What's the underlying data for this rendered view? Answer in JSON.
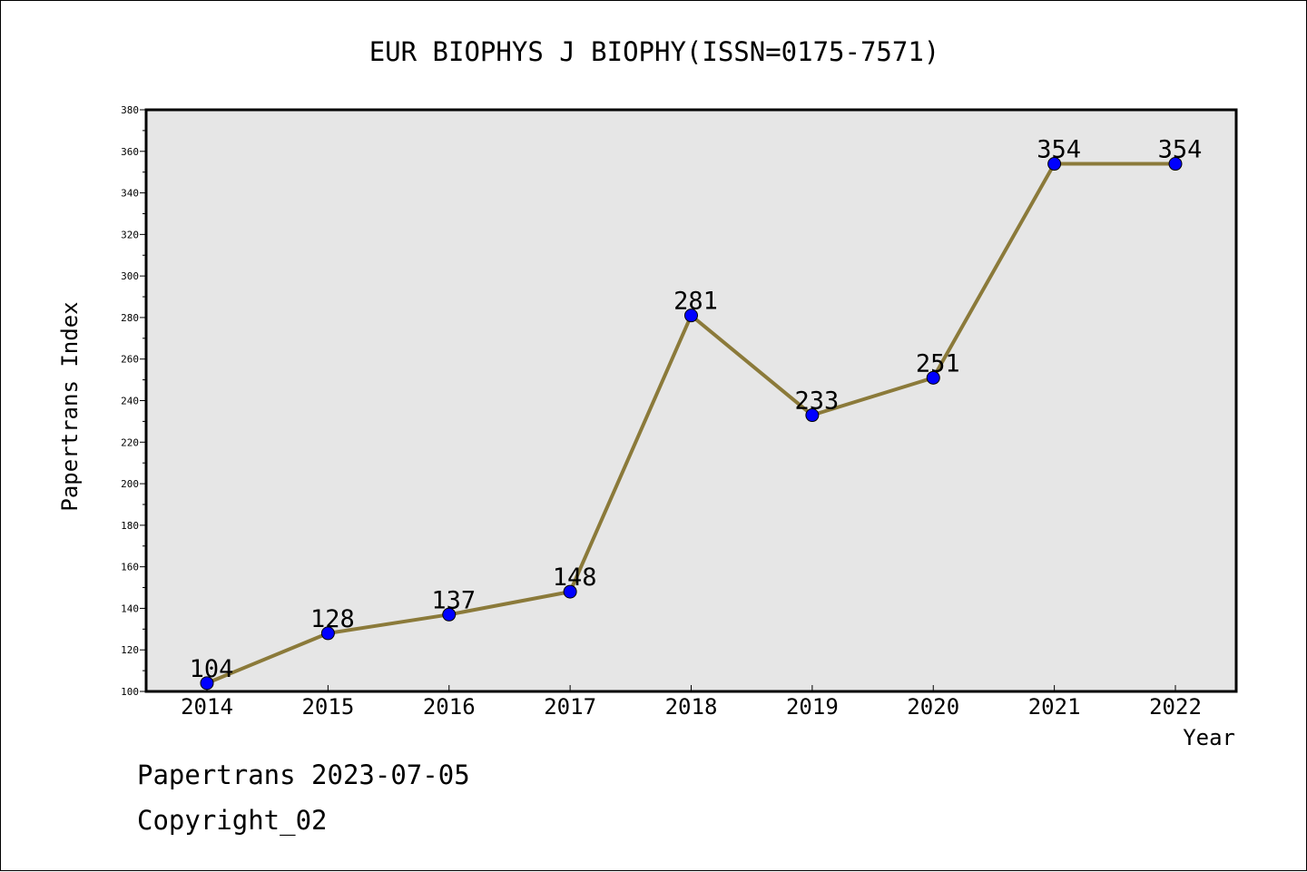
{
  "chart_data": {
    "type": "line",
    "title": "EUR BIOPHYS J BIOPHY(ISSN=0175-7571)",
    "xlabel": "Year",
    "ylabel": "Papertrans Index",
    "categories": [
      "2014",
      "2015",
      "2016",
      "2017",
      "2018",
      "2019",
      "2020",
      "2021",
      "2022"
    ],
    "values": [
      104,
      128,
      137,
      148,
      281,
      233,
      251,
      354,
      354
    ],
    "ylim": [
      100,
      380
    ],
    "y_ticks": [
      100,
      120,
      140,
      160,
      180,
      200,
      220,
      240,
      260,
      280,
      300,
      320,
      340,
      360,
      380
    ],
    "grid": false,
    "legend": "none",
    "data_labels": true,
    "colors": {
      "line": "#8b7a3a",
      "marker": "#0000ff",
      "plot_background": "#e6e6e6"
    }
  },
  "footer": {
    "line1": "Papertrans 2023-07-05",
    "line2": "Copyright_02"
  }
}
